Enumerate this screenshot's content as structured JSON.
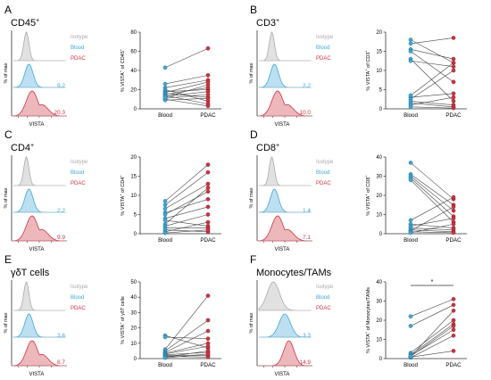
{
  "colors": {
    "isotype": "#aaaaaa",
    "blood": "#3fa7d6",
    "pdac": "#cc3340",
    "line": "#444444"
  },
  "chart_data": [
    {
      "type": "scatter",
      "panel_letter": "A",
      "population": "CD45",
      "population_sup": "+",
      "hist": {
        "legend": [
          "Isotype",
          "Blood",
          "PDAC"
        ],
        "ylabel": "% of max",
        "xlabel": "VISTA",
        "blood_value": "9.2",
        "pdac_value": "20.3"
      },
      "paired": {
        "ylabel_main": "% VISTA",
        "ylabel_sup": "+",
        "ylabel_tail": " of CD45",
        "ylabel_tail_sup": "+",
        "categories": [
          "Blood",
          "PDAC"
        ],
        "ylim": [
          0,
          80
        ],
        "yticks": [
          "0",
          "20",
          "40",
          "60",
          "80"
        ],
        "pairs": [
          [
            43,
            63
          ],
          [
            26,
            35
          ],
          [
            22,
            30
          ],
          [
            20,
            8
          ],
          [
            18,
            20
          ],
          [
            17,
            28
          ],
          [
            16,
            12
          ],
          [
            15,
            22
          ],
          [
            14,
            5
          ],
          [
            13,
            18
          ],
          [
            11,
            15
          ],
          [
            10,
            3
          ],
          [
            9,
            11
          ],
          [
            12,
            25
          ]
        ],
        "significance": ""
      }
    },
    {
      "type": "scatter",
      "panel_letter": "B",
      "population": "CD3",
      "population_sup": "+",
      "hist": {
        "legend": [
          "Isotype",
          "Blood",
          "PDAC"
        ],
        "ylabel": "% of max",
        "xlabel": "VISTA",
        "blood_value": "2.2",
        "pdac_value": "10.0"
      },
      "paired": {
        "ylabel_main": "% VISTA",
        "ylabel_sup": "+",
        "ylabel_tail": " of CD3",
        "ylabel_tail_sup": "+",
        "categories": [
          "Blood",
          "PDAC"
        ],
        "ylim": [
          0,
          20
        ],
        "yticks": [
          "0",
          "5",
          "10",
          "15",
          "20"
        ],
        "pairs": [
          [
            18,
            12
          ],
          [
            17,
            18.5
          ],
          [
            15.5,
            13
          ],
          [
            15,
            7
          ],
          [
            13,
            2
          ],
          [
            12.5,
            11
          ],
          [
            3,
            4
          ],
          [
            2.5,
            10
          ],
          [
            2,
            1
          ],
          [
            1.5,
            0.5
          ],
          [
            1,
            3
          ],
          [
            0.5,
            0.2
          ],
          [
            3.5,
            12
          ]
        ],
        "significance": ""
      }
    },
    {
      "type": "scatter",
      "panel_letter": "C",
      "population": "CD4",
      "population_sup": "+",
      "hist": {
        "legend": [
          "Isotype",
          "Blood",
          "PDAC"
        ],
        "ylabel": "% of max",
        "xlabel": "VISTA",
        "blood_value": "2.2",
        "pdac_value": "9.9"
      },
      "paired": {
        "ylabel_main": "% VISTA",
        "ylabel_sup": "+",
        "ylabel_tail": " of CD4",
        "ylabel_tail_sup": "+",
        "categories": [
          "Blood",
          "PDAC"
        ],
        "ylim": [
          0,
          20
        ],
        "yticks": [
          "0",
          "5",
          "10",
          "15",
          "20"
        ],
        "pairs": [
          [
            8.5,
            18
          ],
          [
            7.5,
            16
          ],
          [
            6.5,
            13
          ],
          [
            5.5,
            9
          ],
          [
            5,
            11
          ],
          [
            4,
            7
          ],
          [
            3.5,
            2
          ],
          [
            2.5,
            12
          ],
          [
            2,
            5
          ],
          [
            1.5,
            1.5
          ],
          [
            1,
            0.5
          ],
          [
            0.5,
            3
          ],
          [
            0.2,
            1
          ]
        ],
        "significance": ""
      }
    },
    {
      "type": "scatter",
      "panel_letter": "D",
      "population": "CD8",
      "population_sup": "+",
      "hist": {
        "legend": [
          "Isotype",
          "Blood",
          "PDAC"
        ],
        "ylabel": "% of max",
        "xlabel": "VISTA",
        "blood_value": "1.4",
        "pdac_value": "7.1"
      },
      "paired": {
        "ylabel_main": "% VISTA",
        "ylabel_sup": "+",
        "ylabel_tail": " of CD8",
        "ylabel_tail_sup": "+",
        "categories": [
          "Blood",
          "PDAC"
        ],
        "ylim": [
          0,
          40
        ],
        "yticks": [
          "0",
          "10",
          "20",
          "30",
          "40"
        ],
        "pairs": [
          [
            37,
            18
          ],
          [
            31,
            15
          ],
          [
            30,
            12
          ],
          [
            29,
            9
          ],
          [
            28,
            6
          ],
          [
            7,
            19
          ],
          [
            5,
            3
          ],
          [
            4,
            8
          ],
          [
            3,
            2
          ],
          [
            2,
            1
          ],
          [
            1.5,
            14
          ],
          [
            1,
            0.5
          ],
          [
            0.5,
            5
          ]
        ],
        "significance": ""
      }
    },
    {
      "type": "scatter",
      "panel_letter": "E",
      "population": "γδT cells",
      "population_sup": "",
      "hist": {
        "legend": [
          "Isotype",
          "Blood",
          "PDAC"
        ],
        "ylabel": "% of max",
        "xlabel": "VISTA",
        "blood_value": "3.6",
        "pdac_value": "6.7"
      },
      "paired": {
        "ylabel_main": "% VISTA",
        "ylabel_sup": "+",
        "ylabel_tail": " of γδT cells",
        "ylabel_tail_sup": "",
        "categories": [
          "Blood",
          "PDAC"
        ],
        "ylim": [
          0,
          50
        ],
        "yticks": [
          "0",
          "10",
          "20",
          "30",
          "40",
          "50"
        ],
        "pairs": [
          [
            15,
            7
          ],
          [
            14,
            13
          ],
          [
            6,
            41
          ],
          [
            5,
            25
          ],
          [
            4,
            18
          ],
          [
            3.5,
            10
          ],
          [
            3,
            8
          ],
          [
            2.5,
            4
          ],
          [
            2,
            2
          ],
          [
            1.5,
            1
          ],
          [
            1,
            5
          ],
          [
            0.5,
            3
          ]
        ],
        "significance": ""
      }
    },
    {
      "type": "scatter",
      "panel_letter": "F",
      "population": "Monocytes/TAMs",
      "population_sup": "",
      "hist": {
        "legend": [
          "Isotype",
          "Blood",
          "PDAC"
        ],
        "ylabel": "% of max",
        "xlabel": "VISTA",
        "blood_value": "3.3",
        "pdac_value": "14.9"
      },
      "paired": {
        "ylabel_main": "% VISTA",
        "ylabel_sup": "+",
        "ylabel_tail": " of Monocytes/TAMs",
        "ylabel_tail_sup": "",
        "categories": [
          "Blood",
          "PDAC"
        ],
        "ylim": [
          0,
          40
        ],
        "yticks": [
          "0",
          "10",
          "20",
          "30",
          "40"
        ],
        "pairs": [
          [
            22,
            31
          ],
          [
            17,
            28
          ],
          [
            3,
            20
          ],
          [
            2,
            18
          ],
          [
            1.5,
            15
          ],
          [
            1,
            25
          ],
          [
            0.5,
            12
          ],
          [
            0.8,
            4
          ],
          [
            1.2,
            17
          ]
        ],
        "significance": "*"
      }
    }
  ]
}
